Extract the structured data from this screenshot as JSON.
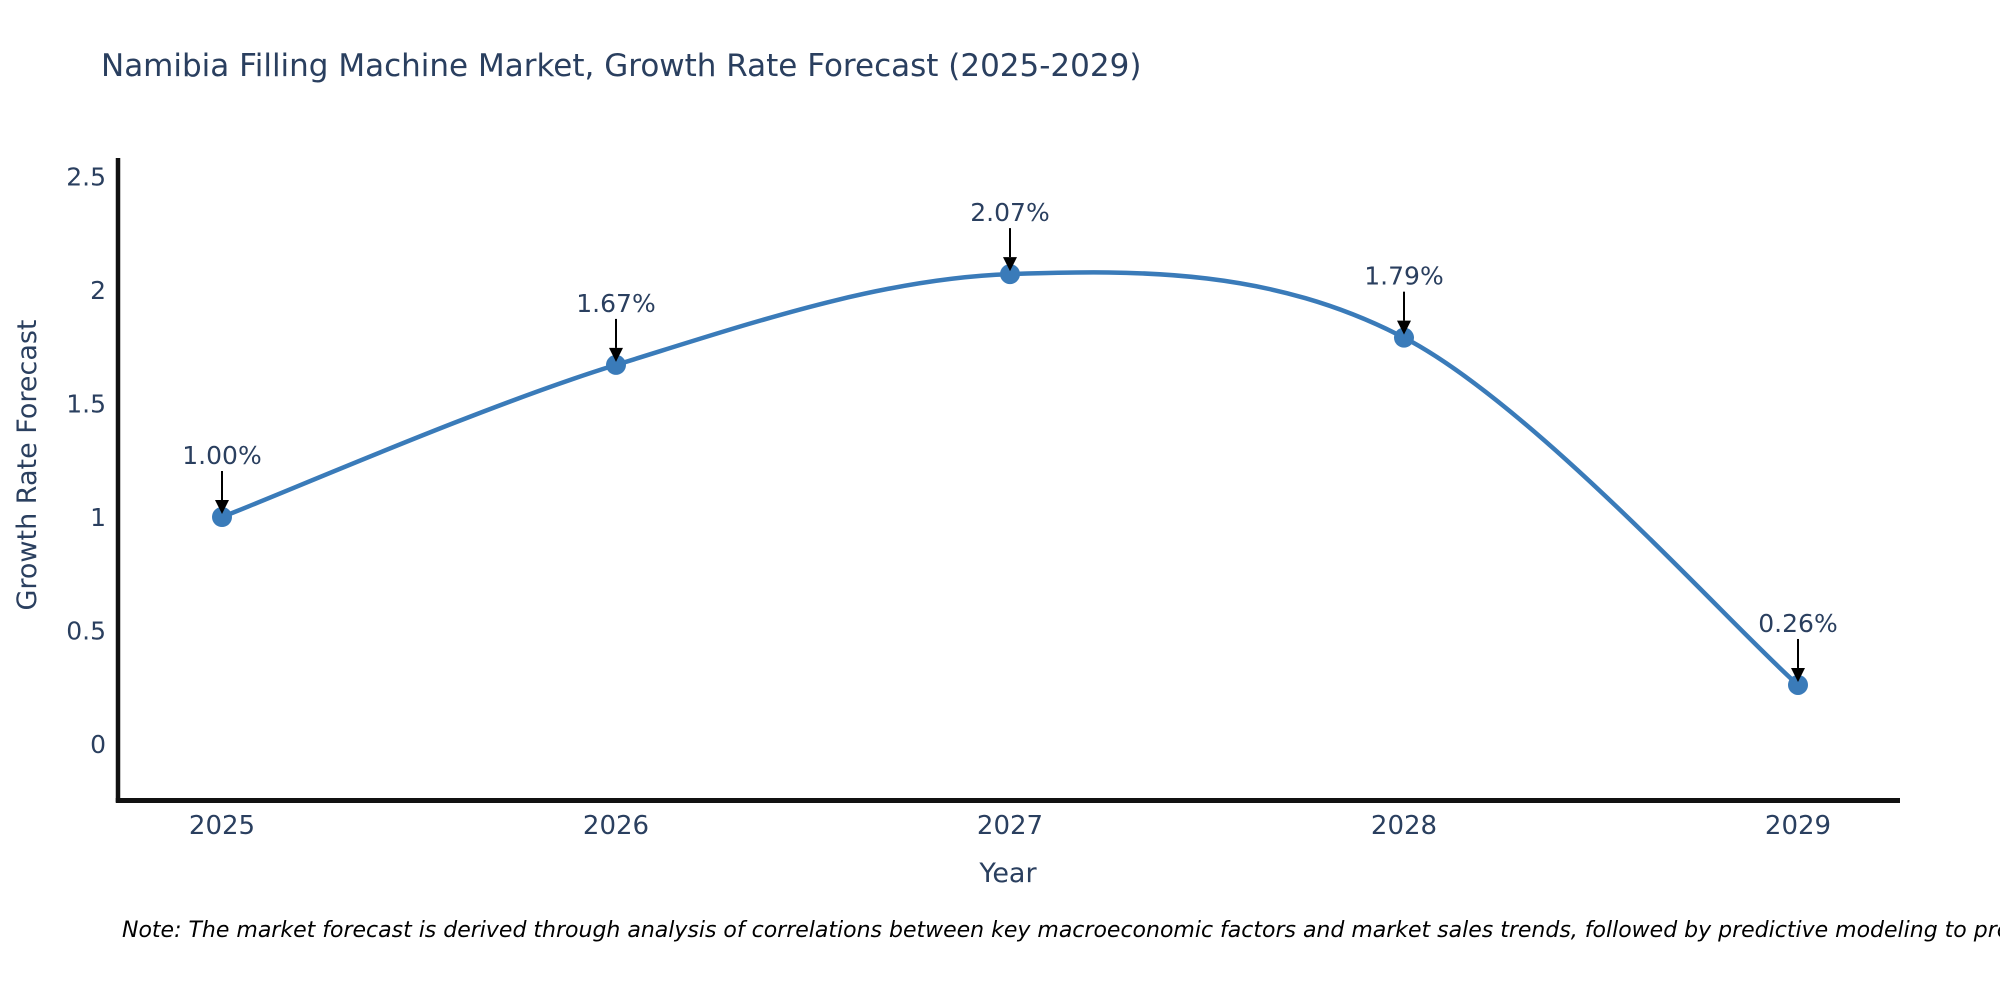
{
  "chart_data": {
    "type": "line",
    "title": "Namibia Filling Machine Market, Growth Rate Forecast (2025-2029)",
    "x": [
      2025,
      2026,
      2027,
      2028,
      2029
    ],
    "values": [
      1.0,
      1.67,
      2.07,
      1.79,
      0.26
    ],
    "point_labels": [
      "1.00%",
      "1.67%",
      "2.07%",
      "1.79%",
      "0.26%"
    ],
    "xlabel": "Year",
    "ylabel": "Growth Rate Forecast",
    "yticks": [
      0,
      0.5,
      1,
      1.5,
      2,
      2.5
    ],
    "ylim": [
      -0.26,
      2.58
    ],
    "grid": false,
    "legend": false,
    "line_shape": "spline",
    "line_color": "#3a7bb9",
    "marker_color": "#3a7bb9",
    "arrow_color": "#000000",
    "axis_line_color": "#111111",
    "text_color": "#2a3f5f",
    "note": "Note: The market forecast is derived through analysis of correlations between key macroeconomic factors and market sales trends, followed by predictive modeling to project future sales"
  }
}
